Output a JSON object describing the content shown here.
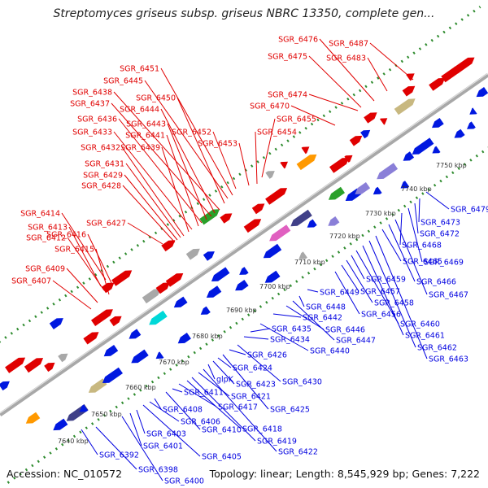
{
  "title": "Streptomyces griseus subsp. griseus NBRC 13350, complete gen...",
  "footer": {
    "accession": "Accession: NC_010572",
    "summary": "Topology: linear; Length: 8,545,929 bp; Genes: 7,222"
  },
  "colors": {
    "forward_label": "#e00000",
    "reverse_label": "#0000e0",
    "backbone": "#a8a8a8",
    "dots": "#2e8b2e"
  },
  "kbp_marks": [
    "7640 kbp",
    "7650 kbp",
    "7660 kbp",
    "7670 kbp",
    "7680 kbp",
    "7690 kbp",
    "7700 kbp",
    "7710 kbp",
    "7720 kbp",
    "7730 kbp",
    "7740 kbp",
    "7750 kbp"
  ],
  "forward_genes": [
    "SGR_6407",
    "SGR_6409",
    "SGR_6415",
    "SGR_6412",
    "SGR_6413",
    "SGR_6416",
    "SGR_6414",
    "SGR_6427",
    "SGR_6428",
    "SGR_6429",
    "SGR_6431",
    "SGR_6432",
    "SGR_6439",
    "SGR_6433",
    "SGR_6441",
    "SGR_6436",
    "SGR_6443",
    "SGR_6437",
    "SGR_6444",
    "SGR_6438",
    "SGR_6450",
    "SGR_6445",
    "SGR_6451",
    "SGR_6452",
    "SGR_6454",
    "SGR_6453",
    "SGR_6455",
    "SGR_6470",
    "SGR_6474",
    "SGR_6475",
    "SGR_6476",
    "SGR_6483",
    "SGR_6487"
  ],
  "reverse_genes": [
    "SGR_6392",
    "SGR_6398",
    "SGR_6400",
    "SGR_6401",
    "SGR_6403",
    "SGR_6405",
    "SGR_6406",
    "SGR_6408",
    "SGR_6410",
    "SGR_6411",
    "SGR_6417",
    "SGR_6418",
    "SGR_6419",
    "SGR_6421",
    "SGR_6422",
    "glpK",
    "SGR_6423",
    "SGR_6424",
    "SGR_6425",
    "SGR_6426",
    "SGR_6430",
    "SGR_6434",
    "SGR_6435",
    "SGR_6440",
    "SGR_6442",
    "SGR_6446",
    "SGR_6447",
    "SGR_6448",
    "SGR_6449",
    "SGR_6456",
    "SGR_6457",
    "SGR_6458",
    "SGR_6459",
    "SGR_6460",
    "SGR_6461",
    "SGR_6462",
    "SGR_6463",
    "SGR_6465",
    "SGR_6466",
    "SGR_6467",
    "SGR_6468",
    "SGR_6469",
    "SGR_6472",
    "SGR_6473",
    "SGR_6479"
  ]
}
